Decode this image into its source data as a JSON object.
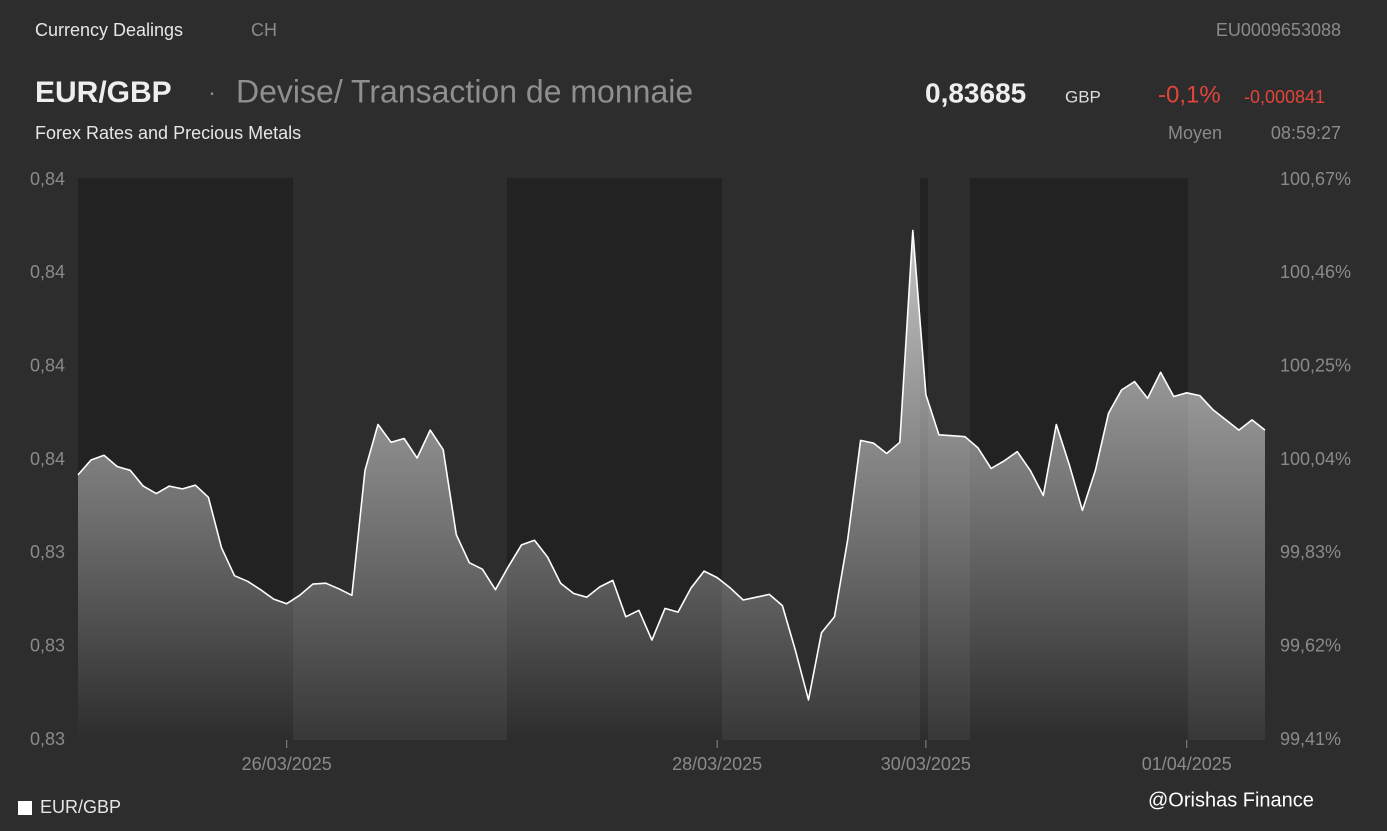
{
  "header": {
    "section": "Currency Dealings",
    "country": "CH",
    "isin": "EU0009653088",
    "symbol": "EUR/GBP",
    "separator": "·",
    "instrument": "Devise/ Transaction de monnaie",
    "price": "0,83685",
    "currency": "GBP",
    "change_pct": "-0,1%",
    "change_abs": "-0,000841",
    "market": "Forex Rates and Precious Metals",
    "price_type": "Moyen",
    "time": "08:59:27",
    "watermark": "@Orishas Finance"
  },
  "chart_data": {
    "type": "line",
    "categories": [
      null,
      null,
      null,
      null,
      null,
      null,
      null,
      null,
      null,
      null,
      null,
      null,
      null,
      null,
      null,
      null,
      "26/03/2025",
      null,
      null,
      null,
      null,
      null,
      null,
      null,
      null,
      null,
      null,
      null,
      null,
      null,
      null,
      null,
      null,
      null,
      null,
      null,
      null,
      null,
      null,
      null,
      null,
      null,
      null,
      null,
      null,
      null,
      null,
      null,
      null,
      "28/03/2025",
      null,
      null,
      null,
      null,
      null,
      null,
      null,
      null,
      null,
      null,
      null,
      null,
      null,
      null,
      null,
      "30/03/2025",
      null,
      null,
      null,
      null,
      null,
      null,
      null,
      null,
      null,
      null,
      null,
      null,
      null,
      null,
      null,
      null,
      null,
      null,
      null,
      "01/04/2025",
      null,
      null,
      null,
      null,
      null,
      null
    ],
    "series": [
      {
        "name": "EUR/GBP",
        "color": "#ffffff",
        "values": [
          0.83484,
          0.835,
          0.83505,
          0.83493,
          0.83489,
          0.83472,
          0.83464,
          0.83472,
          0.83469,
          0.83473,
          0.8346,
          0.83406,
          0.83376,
          0.8337,
          0.83361,
          0.83351,
          0.83346,
          0.83355,
          0.83367,
          0.83368,
          0.83362,
          0.83355,
          0.83489,
          0.83538,
          0.83519,
          0.83523,
          0.83502,
          0.83532,
          0.83511,
          0.8342,
          0.8339,
          0.83383,
          0.83361,
          0.83386,
          0.83409,
          0.83414,
          0.83396,
          0.83368,
          0.83357,
          0.83353,
          0.83364,
          0.83371,
          0.83332,
          0.83339,
          0.83307,
          0.83341,
          0.83337,
          0.83363,
          0.83381,
          0.83374,
          0.83363,
          0.8335,
          0.83353,
          0.83356,
          0.83344,
          0.83296,
          0.83243,
          0.83315,
          0.83332,
          0.83414,
          0.83521,
          0.83518,
          0.83507,
          0.83519,
          0.83746,
          0.8357,
          0.83527,
          0.83526,
          0.83525,
          0.83513,
          0.83491,
          0.83499,
          0.83509,
          0.83489,
          0.83462,
          0.83538,
          0.83495,
          0.83446,
          0.83489,
          0.8355,
          0.83575,
          0.83584,
          0.83566,
          0.83594,
          0.83568,
          0.83572,
          0.83569,
          0.83554,
          0.83543,
          0.83532,
          0.83543,
          0.83532
        ]
      }
    ],
    "ylim": [
      0.832,
      0.838
    ],
    "yticks": [
      {
        "value": 0.832,
        "label": "0,83"
      },
      {
        "value": 0.833,
        "label": "0,83"
      },
      {
        "value": 0.834,
        "label": "0,83"
      },
      {
        "value": 0.835,
        "label": "0,84"
      },
      {
        "value": 0.836,
        "label": "0,84"
      },
      {
        "value": 0.837,
        "label": "0,84"
      },
      {
        "value": 0.838,
        "label": "0,84"
      }
    ],
    "y2lim": [
      99.41,
      100.67
    ],
    "y2ticks": [
      {
        "value": 99.41,
        "label": "99,41%"
      },
      {
        "value": 99.62,
        "label": "99,62%"
      },
      {
        "value": 99.83,
        "label": "99,83%"
      },
      {
        "value": 100.04,
        "label": "100,04%"
      },
      {
        "value": 100.25,
        "label": "100,25%"
      },
      {
        "value": 100.46,
        "label": "100,46%"
      },
      {
        "value": 100.67,
        "label": "100,67%"
      }
    ],
    "grid": false,
    "legend": "bottom-left"
  }
}
